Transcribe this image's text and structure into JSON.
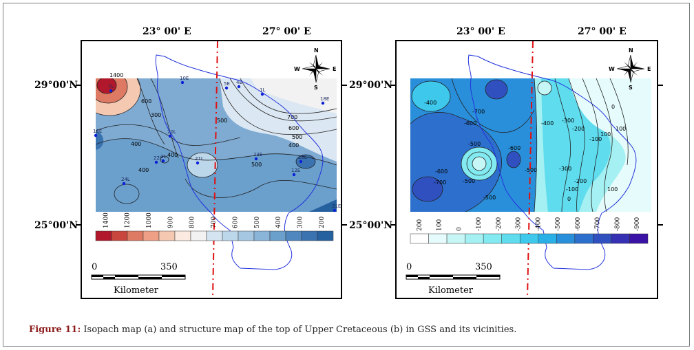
{
  "figure": {
    "caption_label": "Figure 11:",
    "caption_text": " Isopach map (a) and structure map of the top of Upper Cretaceous (b) in GSS and its vicinities."
  },
  "coords": {
    "lon1": "23° 00' E",
    "lon2": "27° 00' E",
    "lat_top": "29°00'N",
    "lat_bottom": "25°00'N"
  },
  "compass": {
    "n": "N",
    "s": "S",
    "e": "E",
    "w": "W"
  },
  "scale_bar": {
    "start": "0",
    "end": "350",
    "unit": "Kilometer"
  },
  "map_a": {
    "colorbar_labels": [
      "1400",
      "1200",
      "1000",
      "900",
      "800",
      "700",
      "600",
      "500",
      "400",
      "300",
      "200"
    ],
    "colorbar_colors": [
      "#b2182b",
      "#c9463f",
      "#de7a63",
      "#ee9f86",
      "#f5c8b2",
      "#faeadf",
      "#f2f2f2",
      "#d5e4f1",
      "#bcd6ea",
      "#a6c7e2",
      "#8ab4d8",
      "#6b9fcc",
      "#4f87be",
      "#3a73b0",
      "#25609f"
    ],
    "contour_labels": [
      "700",
      "600",
      "500",
      "400",
      "500",
      "400",
      "600",
      "1400",
      "400",
      "500",
      "400",
      "300"
    ],
    "wells": [
      "7L",
      "10E",
      "4E",
      "5E",
      "1L",
      "18E",
      "16E",
      "20L",
      "3L",
      "21L",
      "22L",
      "23E",
      "26L",
      "12E",
      "24L",
      "31E"
    ]
  },
  "map_b": {
    "colorbar_labels": [
      "200",
      "100",
      "0",
      "-100",
      "-200",
      "-300",
      "-400",
      "-500",
      "-600",
      "-700",
      "-800",
      "-900"
    ],
    "colorbar_colors": [
      "#ffffff",
      "#e6fbfb",
      "#c6f6f6",
      "#a4f0f2",
      "#82eaf0",
      "#5fdcee",
      "#3ec9ec",
      "#2ab0e6",
      "#2a8fda",
      "#2d6fcc",
      "#3050c0",
      "#3630b3",
      "#3a12a6"
    ],
    "contour_labels": [
      "-400",
      "-700",
      "-600",
      "-500",
      "-500",
      "-600",
      "-700",
      "-500",
      "-400",
      "-300",
      "-200",
      "-100",
      "0",
      "100",
      "-300",
      "-200",
      "-100",
      "0",
      "100",
      "100",
      "-600",
      "-500"
    ]
  }
}
